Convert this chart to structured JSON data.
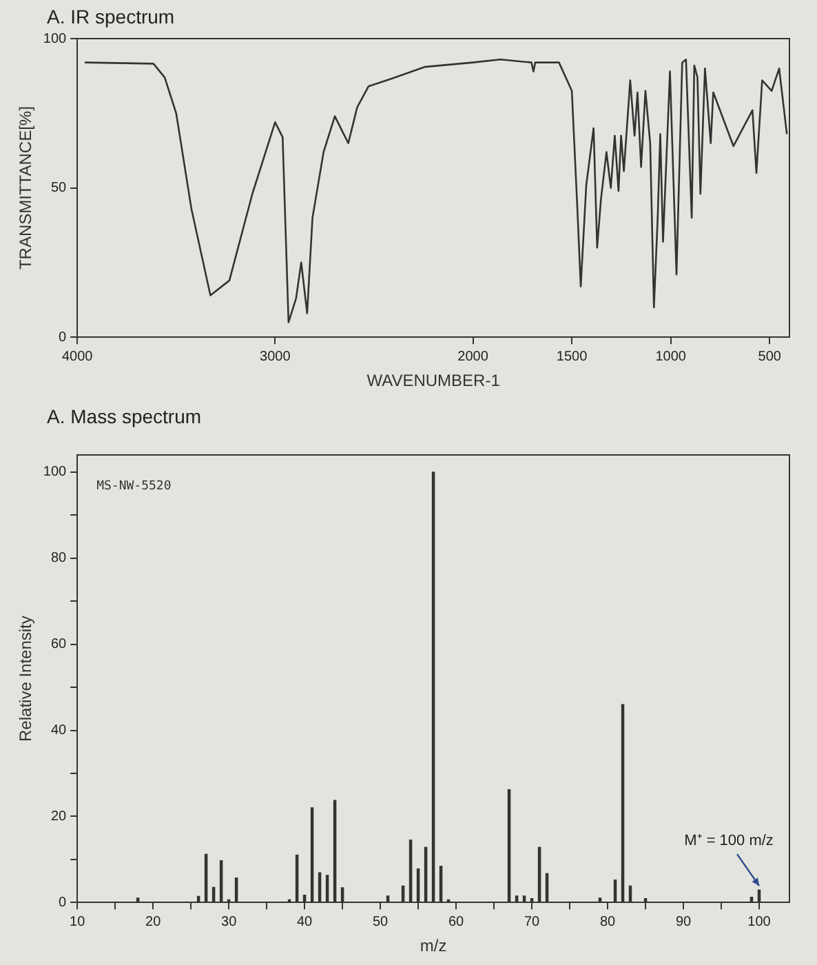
{
  "chart_data": [
    {
      "type": "line",
      "title": "A. IR spectrum",
      "xlabel": "WAVENUMBER-1",
      "ylabel": "TRANSMITTANCE[%]",
      "xlim": [
        4000,
        400
      ],
      "xticks": [
        4000,
        3000,
        2000,
        1500,
        1000,
        500
      ],
      "ylim": [
        0,
        100
      ],
      "yticks": [
        0,
        50,
        100
      ],
      "grid": false,
      "legend": false,
      "marker": "none",
      "line_style": "solid",
      "series": [
        {
          "color": "#333333",
          "x": [
            3962,
            3615,
            3558,
            3500,
            3423,
            3327,
            3231,
            3115,
            3000,
            2962,
            2932,
            2894,
            2868,
            2838,
            2811,
            2755,
            2698,
            2653,
            2630,
            2585,
            2528,
            2415,
            2245,
            2000,
            1861,
            1704,
            1694,
            1685,
            1565,
            1500,
            1472,
            1455,
            1427,
            1390,
            1372,
            1353,
            1325,
            1303,
            1283,
            1264,
            1251,
            1237,
            1205,
            1183,
            1168,
            1150,
            1128,
            1104,
            1085,
            1066,
            1053,
            1039,
            1004,
            971,
            942,
            923,
            894,
            881,
            865,
            850,
            827,
            798,
            785,
            683,
            587,
            567,
            538,
            490,
            452,
            413
          ],
          "values": [
            92,
            91.6,
            87,
            75,
            43,
            14,
            19,
            48,
            72,
            67,
            5,
            13,
            25,
            8,
            40,
            62,
            74,
            68,
            65,
            77,
            84,
            86.5,
            90.5,
            92,
            93,
            92,
            89,
            92,
            92,
            82.5,
            43,
            17,
            51,
            70,
            30,
            46,
            62,
            50,
            67.5,
            49,
            67.5,
            55.6,
            86,
            67.5,
            82,
            57,
            82.5,
            65,
            10,
            40,
            68,
            32,
            89,
            21,
            92,
            93,
            40,
            91,
            87,
            48,
            90,
            65,
            82,
            64,
            76,
            55,
            86,
            82.5,
            90,
            68
          ]
        }
      ]
    },
    {
      "type": "bar",
      "title": "A. Mass spectrum",
      "xlabel": "m/z",
      "ylabel": "Relative Intensity",
      "xlim": [
        10,
        104
      ],
      "xticks": [
        10,
        {
          "value": 15,
          "label": null
        },
        20,
        {
          "value": 25,
          "label": null
        },
        30,
        {
          "value": 35,
          "label": null
        },
        40,
        {
          "value": 45,
          "label": null
        },
        50,
        {
          "value": 55,
          "label": null
        },
        60,
        {
          "value": 65,
          "label": null
        },
        70,
        {
          "value": 75,
          "label": null
        },
        80,
        {
          "value": 85,
          "label": null
        },
        90,
        {
          "value": 95,
          "label": null
        },
        100
      ],
      "ylim": [
        0,
        104
      ],
      "yticks": [
        0,
        {
          "value": 10,
          "label": null
        },
        20,
        {
          "value": 30,
          "label": null
        },
        40,
        {
          "value": 50,
          "label": null
        },
        60,
        {
          "value": 70,
          "label": null
        },
        80,
        {
          "value": 90,
          "label": null
        },
        100
      ],
      "grid": false,
      "legend": false,
      "annotations": [
        "MS-NW-5520",
        {
          "text": "M⁺ = 100 m/z",
          "x": 100,
          "y": 2.9
        }
      ],
      "series": [
        {
          "color": "#333333",
          "x": [
            18,
            26,
            27,
            28,
            29,
            30,
            31,
            38,
            39,
            40,
            41,
            42,
            43,
            44,
            45,
            51,
            53,
            54,
            55,
            56,
            57,
            58,
            59,
            67,
            68,
            69,
            70,
            71,
            72,
            79,
            81,
            82,
            83,
            85,
            99,
            100
          ],
          "values": [
            1,
            1.4,
            11.2,
            3.5,
            9.7,
            0.6,
            5.7,
            0.6,
            11,
            1.7,
            22,
            6.9,
            6.3,
            23.7,
            3.4,
            1.5,
            3.8,
            14.5,
            7.8,
            12.8,
            100,
            8.4,
            0.6,
            26.2,
            1.5,
            1.5,
            0.9,
            12.8,
            6.7,
            1,
            5.2,
            46,
            3.8,
            0.9,
            1.2,
            2.9
          ]
        }
      ]
    }
  ]
}
